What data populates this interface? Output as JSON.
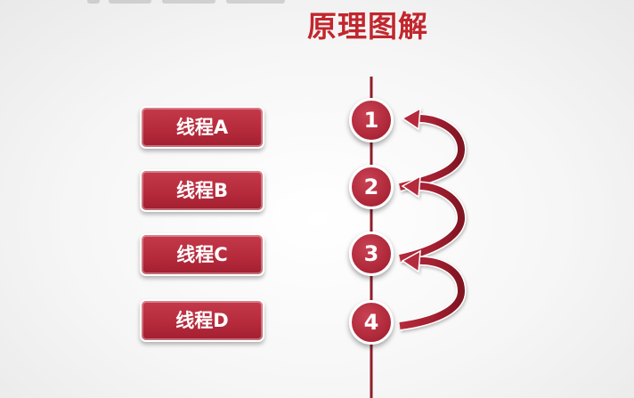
{
  "title": "原理图解",
  "threads": [
    {
      "label": "线程A"
    },
    {
      "label": "线程B"
    },
    {
      "label": "线程C"
    },
    {
      "label": "线程D"
    }
  ],
  "steps": [
    {
      "number": "1"
    },
    {
      "number": "2"
    },
    {
      "number": "3"
    },
    {
      "number": "4"
    }
  ],
  "colors": {
    "accent": "#c1272d",
    "button": "#b62b3c",
    "line": "#8e1e2a",
    "background": "#f3f3f3"
  }
}
